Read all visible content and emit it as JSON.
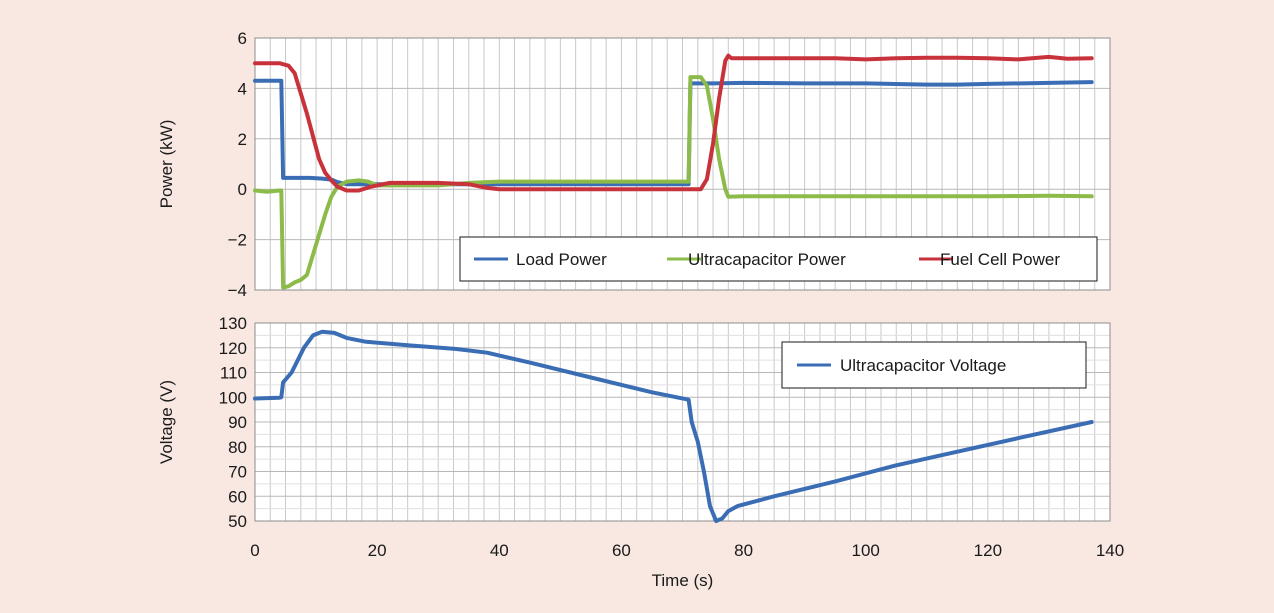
{
  "chart_data": [
    {
      "type": "line",
      "title": "",
      "xlabel": "",
      "ylabel": "Power (kW)",
      "xlim": [
        0,
        140
      ],
      "ylim": [
        -4,
        6
      ],
      "y_ticks": [
        "6",
        "4",
        "2",
        "0",
        "−2",
        "−4"
      ],
      "y_tick_values": [
        6,
        4,
        2,
        0,
        -2,
        -4
      ],
      "grid": true,
      "legend_position": "bottom-right",
      "series": [
        {
          "name": "Load Power",
          "color": "#3a6db4",
          "points": [
            [
              0,
              4.3
            ],
            [
              3,
              4.3
            ],
            [
              4.3,
              4.3
            ],
            [
              4.6,
              0.45
            ],
            [
              6,
              0.45
            ],
            [
              9,
              0.45
            ],
            [
              11,
              0.42
            ],
            [
              12.5,
              0.38
            ],
            [
              13.5,
              0.28
            ],
            [
              15,
              0.2
            ],
            [
              20,
              0.2
            ],
            [
              30,
              0.2
            ],
            [
              40,
              0.2
            ],
            [
              50,
              0.2
            ],
            [
              60,
              0.2
            ],
            [
              71,
              0.2
            ],
            [
              71.3,
              4.2
            ],
            [
              75,
              4.2
            ],
            [
              80,
              4.22
            ],
            [
              90,
              4.2
            ],
            [
              100,
              4.2
            ],
            [
              110,
              4.15
            ],
            [
              115,
              4.15
            ],
            [
              120,
              4.18
            ],
            [
              130,
              4.22
            ],
            [
              137,
              4.25
            ]
          ]
        },
        {
          "name": "Ultracapacitor Power",
          "color": "#8dbb4a",
          "points": [
            [
              0,
              -0.05
            ],
            [
              2,
              -0.1
            ],
            [
              4,
              -0.05
            ],
            [
              4.3,
              -0.05
            ],
            [
              4.6,
              -3.9
            ],
            [
              5.5,
              -3.85
            ],
            [
              6.5,
              -3.7
            ],
            [
              7.5,
              -3.6
            ],
            [
              8.5,
              -3.4
            ],
            [
              9.5,
              -2.6
            ],
            [
              10.5,
              -1.8
            ],
            [
              11.5,
              -1.0
            ],
            [
              12.5,
              -0.3
            ],
            [
              13.5,
              0.1
            ],
            [
              15,
              0.3
            ],
            [
              17,
              0.35
            ],
            [
              18.5,
              0.3
            ],
            [
              20,
              0.15
            ],
            [
              25,
              0.15
            ],
            [
              30,
              0.15
            ],
            [
              35,
              0.25
            ],
            [
              40,
              0.3
            ],
            [
              50,
              0.3
            ],
            [
              60,
              0.3
            ],
            [
              71,
              0.3
            ],
            [
              71.3,
              4.45
            ],
            [
              73,
              4.45
            ],
            [
              74,
              4.1
            ],
            [
              75,
              2.8
            ],
            [
              76,
              1.2
            ],
            [
              77,
              0.0
            ],
            [
              77.5,
              -0.3
            ],
            [
              80,
              -0.28
            ],
            [
              90,
              -0.28
            ],
            [
              100,
              -0.28
            ],
            [
              110,
              -0.28
            ],
            [
              120,
              -0.28
            ],
            [
              130,
              -0.26
            ],
            [
              137,
              -0.28
            ]
          ]
        },
        {
          "name": "Fuel Cell Power",
          "color": "#c8323b",
          "points": [
            [
              0,
              5.0
            ],
            [
              4,
              5.0
            ],
            [
              5.5,
              4.9
            ],
            [
              6.5,
              4.6
            ],
            [
              7.5,
              3.8
            ],
            [
              8.5,
              3.0
            ],
            [
              9.5,
              2.1
            ],
            [
              10.5,
              1.2
            ],
            [
              11.5,
              0.65
            ],
            [
              12.5,
              0.35
            ],
            [
              13.5,
              0.1
            ],
            [
              15,
              -0.05
            ],
            [
              17,
              -0.05
            ],
            [
              19,
              0.1
            ],
            [
              22,
              0.25
            ],
            [
              25,
              0.25
            ],
            [
              30,
              0.25
            ],
            [
              35,
              0.2
            ],
            [
              38,
              0.05
            ],
            [
              40,
              0.0
            ],
            [
              50,
              0.0
            ],
            [
              60,
              0.0
            ],
            [
              73,
              0.0
            ],
            [
              74,
              0.4
            ],
            [
              75,
              1.8
            ],
            [
              76,
              3.6
            ],
            [
              77,
              5.1
            ],
            [
              77.5,
              5.3
            ],
            [
              78,
              5.2
            ],
            [
              85,
              5.2
            ],
            [
              95,
              5.2
            ],
            [
              100,
              5.15
            ],
            [
              105,
              5.2
            ],
            [
              110,
              5.22
            ],
            [
              115,
              5.22
            ],
            [
              120,
              5.2
            ],
            [
              125,
              5.15
            ],
            [
              130,
              5.25
            ],
            [
              133,
              5.18
            ],
            [
              137,
              5.2
            ]
          ]
        }
      ]
    },
    {
      "type": "line",
      "title": "",
      "xlabel": "Time (s)",
      "ylabel": "Voltage (V)",
      "xlim": [
        0,
        140
      ],
      "ylim": [
        50,
        130
      ],
      "x_ticks": [
        "0",
        "20",
        "40",
        "60",
        "80",
        "100",
        "120",
        "140"
      ],
      "x_tick_values": [
        0,
        20,
        40,
        60,
        80,
        100,
        120,
        140
      ],
      "y_ticks": [
        "130",
        "120",
        "110",
        "100",
        "90",
        "80",
        "70",
        "60",
        "50"
      ],
      "y_tick_values": [
        130,
        120,
        110,
        100,
        90,
        80,
        70,
        60,
        50
      ],
      "grid": true,
      "legend_position": "top-right",
      "series": [
        {
          "name": "Ultracapacitor Voltage",
          "color": "#3a6db4",
          "points": [
            [
              0,
              99.5
            ],
            [
              4,
              99.8
            ],
            [
              4.3,
              100
            ],
            [
              4.6,
              106
            ],
            [
              6,
              110
            ],
            [
              8,
              120
            ],
            [
              9.5,
              125
            ],
            [
              11,
              126.5
            ],
            [
              13,
              126
            ],
            [
              15,
              124
            ],
            [
              18,
              122.5
            ],
            [
              25,
              121
            ],
            [
              33,
              119.5
            ],
            [
              38,
              118
            ],
            [
              45,
              114
            ],
            [
              55,
              108
            ],
            [
              65,
              102
            ],
            [
              71,
              99
            ],
            [
              71.5,
              90
            ],
            [
              72.5,
              82
            ],
            [
              73.5,
              70
            ],
            [
              74.5,
              56
            ],
            [
              75.5,
              50
            ],
            [
              76.5,
              51
            ],
            [
              77.5,
              54
            ],
            [
              79,
              56
            ],
            [
              85,
              60
            ],
            [
              95,
              66
            ],
            [
              105,
              72.5
            ],
            [
              115,
              78
            ],
            [
              125,
              83.5
            ],
            [
              137,
              90
            ]
          ]
        }
      ]
    }
  ]
}
